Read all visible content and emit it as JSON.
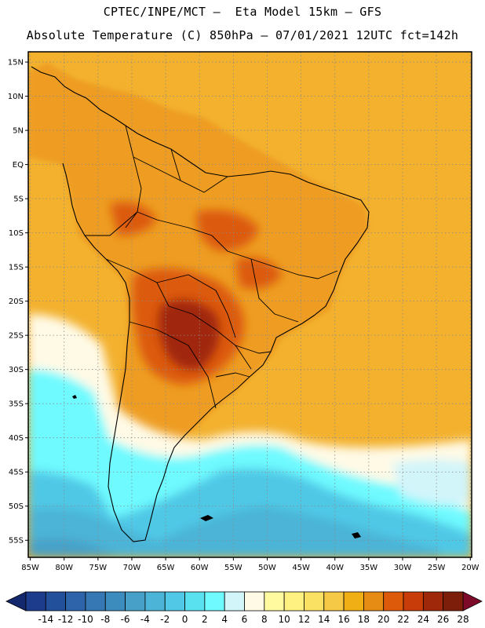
{
  "header": {
    "line1": "CPTEC/INPE/MCT –  Eta Model 15km – GFS",
    "line2": "Absolute Temperature (C) 850hPa – 07/01/2021 12UTC fct=142h"
  },
  "axes": {
    "lat_labels": [
      "15N",
      "10N",
      "5N",
      "EQ",
      "5S",
      "10S",
      "15S",
      "20S",
      "25S",
      "30S",
      "35S",
      "40S",
      "45S",
      "50S",
      "55S"
    ],
    "lat_values": [
      15,
      10,
      5,
      0,
      -5,
      -10,
      -15,
      -20,
      -25,
      -30,
      -35,
      -40,
      -45,
      -50,
      -55
    ],
    "lon_labels": [
      "85W",
      "80W",
      "75W",
      "70W",
      "65W",
      "60W",
      "55W",
      "50W",
      "45W",
      "40W",
      "35W",
      "30W",
      "25W",
      "20W"
    ],
    "lon_values": [
      -85,
      -80,
      -75,
      -70,
      -65,
      -60,
      -55,
      -50,
      -45,
      -40,
      -35,
      -30,
      -25,
      -20
    ],
    "lon_range": [
      -85.3,
      -19.8
    ],
    "lat_range": [
      -57.5,
      16.5
    ]
  },
  "colorbar": {
    "labels": [
      "-14",
      "-12",
      "-10",
      "-8",
      "-6",
      "-4",
      "-2",
      "0",
      "2",
      "4",
      "6",
      "8",
      "10",
      "12",
      "14",
      "16",
      "18",
      "20",
      "22",
      "24",
      "26",
      "28"
    ],
    "colors": [
      "#1e3c8c",
      "#23509b",
      "#2d64aa",
      "#3578b4",
      "#3c8cbe",
      "#46a0c8",
      "#4bb4d7",
      "#50c8e6",
      "#5ae1f0",
      "#6efaff",
      "#d2f5fa",
      "#fffae6",
      "#fffaa0",
      "#fff082",
      "#fae164",
      "#f5c846",
      "#f0af14",
      "#e68c14",
      "#dc5a0a",
      "#c83c0a",
      "#a0280a",
      "#7d1e0a"
    ],
    "left_arrow_color": "#14286e",
    "right_arrow_color": "#7d0a28"
  },
  "map": {
    "sea_color": "#f3b12e",
    "land_color": "#ee9d22",
    "warm_core_color": "#dc5a0a",
    "hot_core_color": "#a0280a",
    "cold_band_colors": [
      "#fffae6",
      "#6efaff",
      "#50c8e6",
      "#4bb4d7",
      "#46a0c8",
      "#d2f5fa"
    ]
  }
}
